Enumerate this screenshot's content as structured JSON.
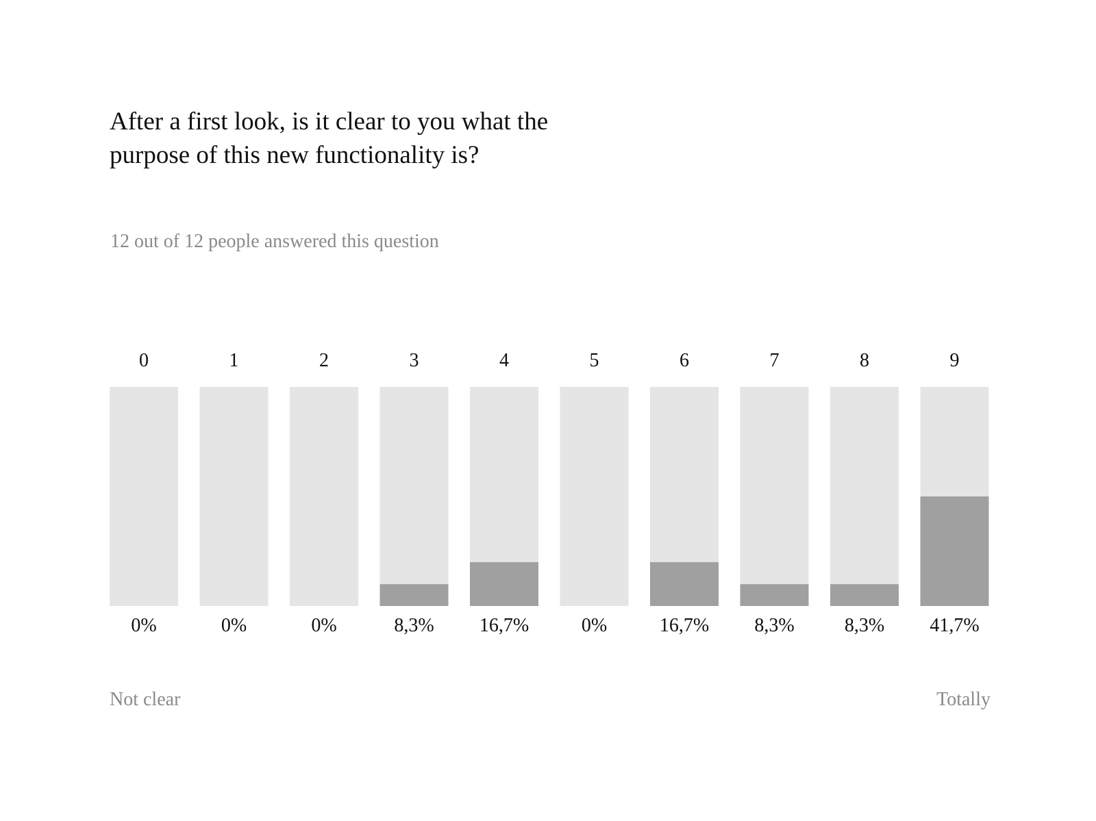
{
  "question": {
    "line1": "After a first look, is it clear to you what the",
    "line2": "purpose of this new functionality is?"
  },
  "answered_text": "12 out of 12 people answered this question",
  "scale": {
    "low_label": "Not clear",
    "high_label": "Totally"
  },
  "colors": {
    "track": "#e5e5e5",
    "fill": "#a0a0a0",
    "label": "#111111",
    "muted": "#8a8a8a"
  },
  "chart_data": {
    "type": "bar",
    "categories": [
      "0",
      "1",
      "2",
      "3",
      "4",
      "5",
      "6",
      "7",
      "8",
      "9"
    ],
    "values": [
      0,
      0,
      0,
      8.3,
      16.7,
      0,
      16.7,
      8.3,
      8.3,
      41.7
    ],
    "value_labels": [
      "0%",
      "0%",
      "0%",
      "8,3%",
      "16,7%",
      "0%",
      "16,7%",
      "8,3%",
      "8,3%",
      "41,7%"
    ],
    "ylim": [
      0,
      83.4
    ],
    "grid": false,
    "legend": "none"
  }
}
